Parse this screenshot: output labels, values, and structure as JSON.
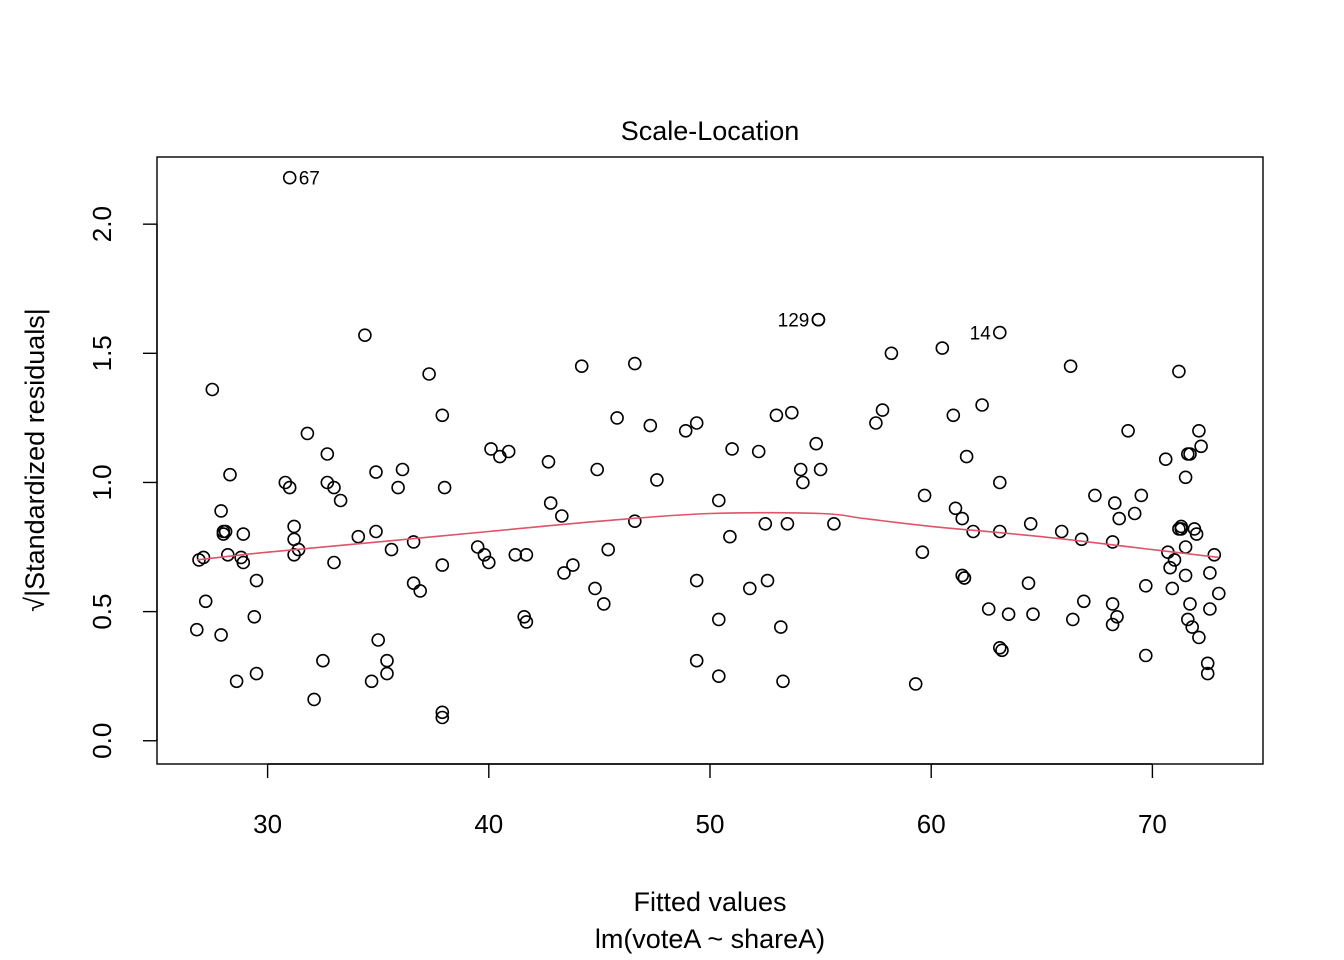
{
  "chart_data": {
    "type": "scatter",
    "title": "Scale-Location",
    "xlabel": "Fitted values",
    "subtitle": "lm(voteA ~ shareA)",
    "ylabel": "√|Standardized residuals|",
    "xlim": [
      25,
      75
    ],
    "ylim": [
      -0.09,
      2.26
    ],
    "x_ticks": [
      "30",
      "40",
      "50",
      "60",
      "70"
    ],
    "y_ticks": [
      "0.0",
      "0.5",
      "1.0",
      "1.5",
      "2.0"
    ],
    "grid": false,
    "colors": {
      "points": "#000000",
      "smooth": "#DF536B",
      "frame": "#000000"
    },
    "labeled_points": [
      {
        "label": "67",
        "x": 31.0,
        "y": 2.18
      },
      {
        "label": "129",
        "x": 54.9,
        "y": 1.63
      },
      {
        "label": "14",
        "x": 63.1,
        "y": 1.58
      }
    ],
    "points": [
      [
        26.9,
        0.7
      ],
      [
        27.1,
        0.71
      ],
      [
        26.8,
        0.43
      ],
      [
        27.2,
        0.54
      ],
      [
        27.5,
        1.36
      ],
      [
        27.9,
        0.89
      ],
      [
        28.0,
        0.8
      ],
      [
        28.0,
        0.81
      ],
      [
        28.1,
        0.81
      ],
      [
        27.9,
        0.41
      ],
      [
        28.2,
        0.72
      ],
      [
        28.3,
        1.03
      ],
      [
        28.6,
        0.23
      ],
      [
        28.8,
        0.71
      ],
      [
        28.9,
        0.8
      ],
      [
        28.9,
        0.69
      ],
      [
        29.4,
        0.48
      ],
      [
        29.5,
        0.62
      ],
      [
        29.5,
        0.26
      ],
      [
        30.8,
        1.0
      ],
      [
        31.0,
        0.98
      ],
      [
        31.2,
        0.83
      ],
      [
        31.2,
        0.78
      ],
      [
        31.2,
        0.72
      ],
      [
        31.4,
        0.74
      ],
      [
        31.8,
        1.19
      ],
      [
        32.1,
        0.16
      ],
      [
        32.5,
        0.31
      ],
      [
        32.7,
        1.11
      ],
      [
        32.7,
        1.0
      ],
      [
        33.0,
        0.98
      ],
      [
        33.0,
        0.69
      ],
      [
        33.3,
        0.93
      ],
      [
        34.1,
        0.79
      ],
      [
        34.4,
        1.57
      ],
      [
        34.7,
        0.23
      ],
      [
        34.9,
        1.04
      ],
      [
        34.9,
        0.81
      ],
      [
        35.0,
        0.39
      ],
      [
        35.4,
        0.31
      ],
      [
        35.4,
        0.26
      ],
      [
        35.6,
        0.74
      ],
      [
        35.9,
        0.98
      ],
      [
        36.1,
        1.05
      ],
      [
        36.6,
        0.77
      ],
      [
        36.6,
        0.61
      ],
      [
        36.9,
        0.58
      ],
      [
        37.3,
        1.42
      ],
      [
        37.9,
        1.26
      ],
      [
        37.9,
        0.68
      ],
      [
        38.0,
        0.98
      ],
      [
        37.9,
        0.11
      ],
      [
        37.9,
        0.09
      ],
      [
        39.5,
        0.75
      ],
      [
        39.8,
        0.72
      ],
      [
        40.0,
        0.69
      ],
      [
        40.1,
        1.13
      ],
      [
        40.5,
        1.1
      ],
      [
        40.9,
        1.12
      ],
      [
        41.2,
        0.72
      ],
      [
        41.6,
        0.48
      ],
      [
        41.7,
        0.46
      ],
      [
        41.7,
        0.72
      ],
      [
        42.7,
        1.08
      ],
      [
        42.8,
        0.92
      ],
      [
        43.3,
        0.87
      ],
      [
        43.4,
        0.65
      ],
      [
        43.8,
        0.68
      ],
      [
        44.2,
        1.45
      ],
      [
        44.8,
        0.59
      ],
      [
        44.9,
        1.05
      ],
      [
        45.2,
        0.53
      ],
      [
        45.4,
        0.74
      ],
      [
        45.8,
        1.25
      ],
      [
        46.6,
        1.46
      ],
      [
        46.6,
        0.85
      ],
      [
        47.3,
        1.22
      ],
      [
        47.6,
        1.01
      ],
      [
        48.9,
        1.2
      ],
      [
        49.4,
        1.23
      ],
      [
        49.4,
        0.62
      ],
      [
        49.4,
        0.31
      ],
      [
        50.4,
        0.93
      ],
      [
        50.4,
        0.47
      ],
      [
        50.4,
        0.25
      ],
      [
        50.9,
        0.79
      ],
      [
        51.0,
        1.13
      ],
      [
        51.8,
        0.59
      ],
      [
        52.2,
        1.12
      ],
      [
        52.5,
        0.84
      ],
      [
        52.6,
        0.62
      ],
      [
        53.0,
        1.26
      ],
      [
        53.2,
        0.44
      ],
      [
        53.3,
        0.23
      ],
      [
        53.5,
        0.84
      ],
      [
        53.7,
        1.27
      ],
      [
        54.1,
        1.05
      ],
      [
        54.2,
        1.0
      ],
      [
        54.8,
        1.15
      ],
      [
        55.0,
        1.05
      ],
      [
        54.9,
        1.63
      ],
      [
        55.6,
        0.84
      ],
      [
        57.5,
        1.23
      ],
      [
        57.8,
        1.28
      ],
      [
        58.2,
        1.5
      ],
      [
        59.3,
        0.22
      ],
      [
        59.7,
        0.95
      ],
      [
        59.6,
        0.73
      ],
      [
        60.5,
        1.52
      ],
      [
        61.0,
        1.26
      ],
      [
        61.1,
        0.9
      ],
      [
        61.4,
        0.86
      ],
      [
        61.5,
        0.63
      ],
      [
        61.4,
        0.64
      ],
      [
        61.5,
        0.63
      ],
      [
        61.6,
        1.1
      ],
      [
        61.9,
        0.81
      ],
      [
        62.3,
        1.3
      ],
      [
        62.6,
        0.51
      ],
      [
        63.1,
        1.0
      ],
      [
        63.1,
        0.81
      ],
      [
        63.1,
        0.36
      ],
      [
        63.2,
        0.35
      ],
      [
        63.5,
        0.49
      ],
      [
        64.5,
        0.84
      ],
      [
        64.4,
        0.61
      ],
      [
        64.6,
        0.49
      ],
      [
        65.9,
        0.81
      ],
      [
        66.3,
        1.45
      ],
      [
        66.4,
        0.47
      ],
      [
        66.8,
        0.78
      ],
      [
        66.9,
        0.54
      ],
      [
        67.4,
        0.95
      ],
      [
        68.2,
        0.77
      ],
      [
        68.3,
        0.92
      ],
      [
        68.2,
        0.53
      ],
      [
        68.2,
        0.45
      ],
      [
        68.5,
        0.86
      ],
      [
        68.4,
        0.48
      ],
      [
        68.9,
        1.2
      ],
      [
        69.2,
        0.88
      ],
      [
        69.5,
        0.95
      ],
      [
        69.7,
        0.33
      ],
      [
        69.7,
        0.6
      ],
      [
        70.6,
        1.09
      ],
      [
        70.7,
        0.73
      ],
      [
        70.8,
        0.67
      ],
      [
        71.0,
        0.7
      ],
      [
        70.9,
        0.59
      ],
      [
        71.2,
        1.43
      ],
      [
        71.2,
        0.82
      ],
      [
        71.3,
        0.83
      ],
      [
        71.3,
        0.82
      ],
      [
        71.5,
        0.75
      ],
      [
        71.5,
        0.64
      ],
      [
        71.6,
        1.11
      ],
      [
        71.5,
        1.02
      ],
      [
        71.7,
        1.11
      ],
      [
        71.6,
        0.47
      ],
      [
        71.7,
        0.53
      ],
      [
        71.9,
        0.82
      ],
      [
        71.8,
        0.44
      ],
      [
        72.0,
        0.8
      ],
      [
        72.1,
        0.4
      ],
      [
        72.1,
        1.2
      ],
      [
        72.2,
        1.14
      ],
      [
        72.5,
        0.3
      ],
      [
        72.5,
        0.26
      ],
      [
        72.6,
        0.65
      ],
      [
        72.6,
        0.51
      ],
      [
        72.8,
        0.72
      ],
      [
        73.0,
        0.57
      ]
    ],
    "smooth_line": {
      "x": [
        26.8,
        30,
        35,
        40,
        45,
        50,
        55,
        57,
        60,
        65,
        70,
        73
      ],
      "y": [
        0.7,
        0.73,
        0.77,
        0.81,
        0.85,
        0.88,
        0.88,
        0.86,
        0.83,
        0.79,
        0.74,
        0.71
      ]
    }
  }
}
